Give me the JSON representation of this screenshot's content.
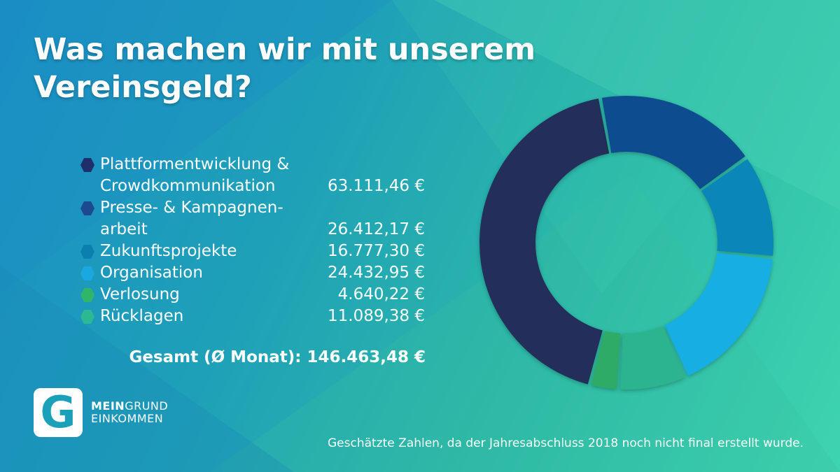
{
  "title": "Was machen wir mit unserem Vereinsgeld?",
  "chart_data": {
    "type": "pie",
    "categories": [
      "Plattformentwicklung & Crowdkommunikation",
      "Presse- & Kampagnen-arbeit",
      "Zukunftsprojekte",
      "Organisation",
      "Verlosung",
      "Rücklagen"
    ],
    "values": [
      63111.46,
      26412.17,
      16777.3,
      24432.95,
      4640.22,
      11089.38
    ],
    "legend_placement": "left"
  },
  "legend": [
    {
      "line1": "Plattformentwicklung &",
      "line2": "Crowdkommunikation",
      "value": "63.111,46 €",
      "color": "#1e2f6b"
    },
    {
      "line1": "Presse- & Kampagnen-",
      "line2": "arbeit",
      "value": "26.412,17 €",
      "color": "#1d4a8f"
    },
    {
      "line1": "Zukunftsprojekte",
      "line2": "",
      "value": "16.777,30 €",
      "color": "#0a7fb0"
    },
    {
      "line1": "Organisation",
      "line2": "",
      "value": "24.432,95 €",
      "color": "#1aa8e0"
    },
    {
      "line1": "Verlosung",
      "line2": "",
      "value": "4.640,22 €",
      "color": "#2fb66a"
    },
    {
      "line1": "Rücklagen",
      "line2": "",
      "value": "11.089,38 €",
      "color": "#2db894"
    }
  ],
  "total": "Gesamt (Ø Monat): 146.463,48 €",
  "logo": {
    "letter": "G",
    "word1_bold": "MEIN",
    "word1_rest": "GRUND",
    "word2": "EINKOMMEN"
  },
  "footnote": "Geschätzte Zahlen, da der Jahresabschluss 2018 noch nicht final erstellt wurde.",
  "ring_colors": [
    "#232f5a",
    "#0d4d8f",
    "#0a86b8",
    "#16aee3",
    "#2eab64",
    "#2bb48e"
  ]
}
